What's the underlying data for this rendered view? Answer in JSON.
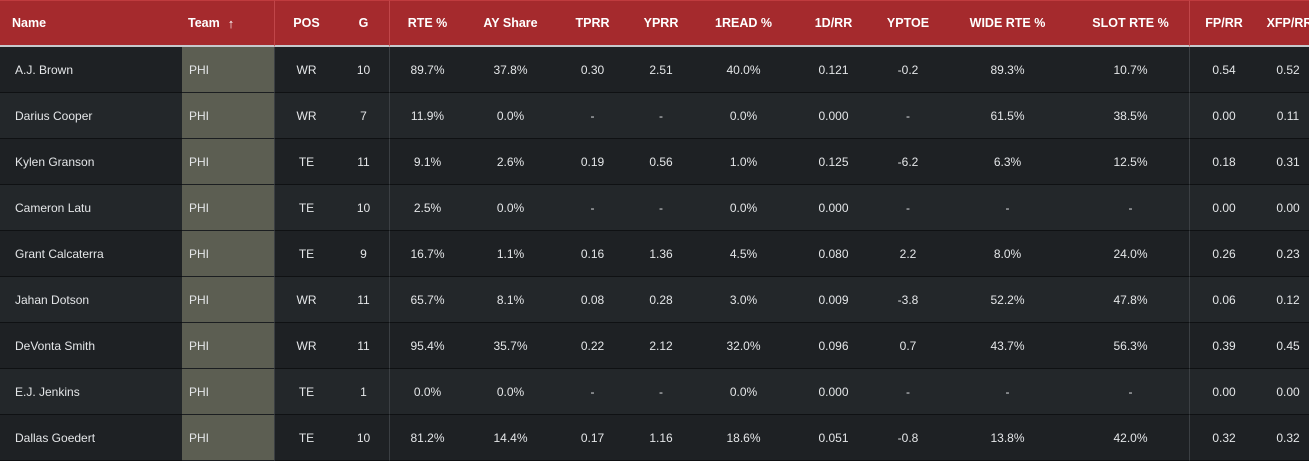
{
  "table": {
    "columns": [
      {
        "key": "name",
        "label": "Name"
      },
      {
        "key": "team",
        "label": "Team"
      },
      {
        "key": "pos",
        "label": "POS"
      },
      {
        "key": "g",
        "label": "G"
      },
      {
        "key": "rte",
        "label": "RTE %"
      },
      {
        "key": "ay_share",
        "label": "AY Share"
      },
      {
        "key": "tprr",
        "label": "TPRR"
      },
      {
        "key": "yprr",
        "label": "YPRR"
      },
      {
        "key": "oneread",
        "label": "1READ %"
      },
      {
        "key": "onedrr",
        "label": "1D/RR"
      },
      {
        "key": "yptoe",
        "label": "YPTOE"
      },
      {
        "key": "wide_rte",
        "label": "WIDE RTE %"
      },
      {
        "key": "slot_rte",
        "label": "SLOT RTE %"
      },
      {
        "key": "fprr",
        "label": "FP/RR"
      },
      {
        "key": "xfprr",
        "label": "XFP/RR"
      }
    ],
    "sort_icon": "arrow-up-icon",
    "sort_arrow_glyph": "↑",
    "rows": [
      [
        "A.J. Brown",
        "PHI",
        "WR",
        "10",
        "89.7%",
        "37.8%",
        "0.30",
        "2.51",
        "40.0%",
        "0.121",
        "-0.2",
        "89.3%",
        "10.7%",
        "0.54",
        "0.52"
      ],
      [
        "Darius Cooper",
        "PHI",
        "WR",
        "7",
        "11.9%",
        "0.0%",
        "-",
        "-",
        "0.0%",
        "0.000",
        "-",
        "61.5%",
        "38.5%",
        "0.00",
        "0.11"
      ],
      [
        "Kylen Granson",
        "PHI",
        "TE",
        "11",
        "9.1%",
        "2.6%",
        "0.19",
        "0.56",
        "1.0%",
        "0.125",
        "-6.2",
        "6.3%",
        "12.5%",
        "0.18",
        "0.31"
      ],
      [
        "Cameron Latu",
        "PHI",
        "TE",
        "10",
        "2.5%",
        "0.0%",
        "-",
        "-",
        "0.0%",
        "0.000",
        "-",
        "-",
        "-",
        "0.00",
        "0.00"
      ],
      [
        "Grant Calcaterra",
        "PHI",
        "TE",
        "9",
        "16.7%",
        "1.1%",
        "0.16",
        "1.36",
        "4.5%",
        "0.080",
        "2.2",
        "8.0%",
        "24.0%",
        "0.26",
        "0.23"
      ],
      [
        "Jahan Dotson",
        "PHI",
        "WR",
        "11",
        "65.7%",
        "8.1%",
        "0.08",
        "0.28",
        "3.0%",
        "0.009",
        "-3.8",
        "52.2%",
        "47.8%",
        "0.06",
        "0.12"
      ],
      [
        "DeVonta Smith",
        "PHI",
        "WR",
        "11",
        "95.4%",
        "35.7%",
        "0.22",
        "2.12",
        "32.0%",
        "0.096",
        "0.7",
        "43.7%",
        "56.3%",
        "0.39",
        "0.45"
      ],
      [
        "E.J. Jenkins",
        "PHI",
        "TE",
        "1",
        "0.0%",
        "0.0%",
        "-",
        "-",
        "0.0%",
        "0.000",
        "-",
        "-",
        "-",
        "0.00",
        "0.00"
      ],
      [
        "Dallas Goedert",
        "PHI",
        "TE",
        "10",
        "81.2%",
        "14.4%",
        "0.17",
        "1.16",
        "18.6%",
        "0.051",
        "-0.8",
        "13.8%",
        "42.0%",
        "0.32",
        "0.32"
      ]
    ]
  },
  "colors": {
    "header_bg": "#a52a2d",
    "team_cell_bg": "#5c5e52",
    "row_bg_even": "#1e2124",
    "row_bg_odd": "#23272a"
  }
}
